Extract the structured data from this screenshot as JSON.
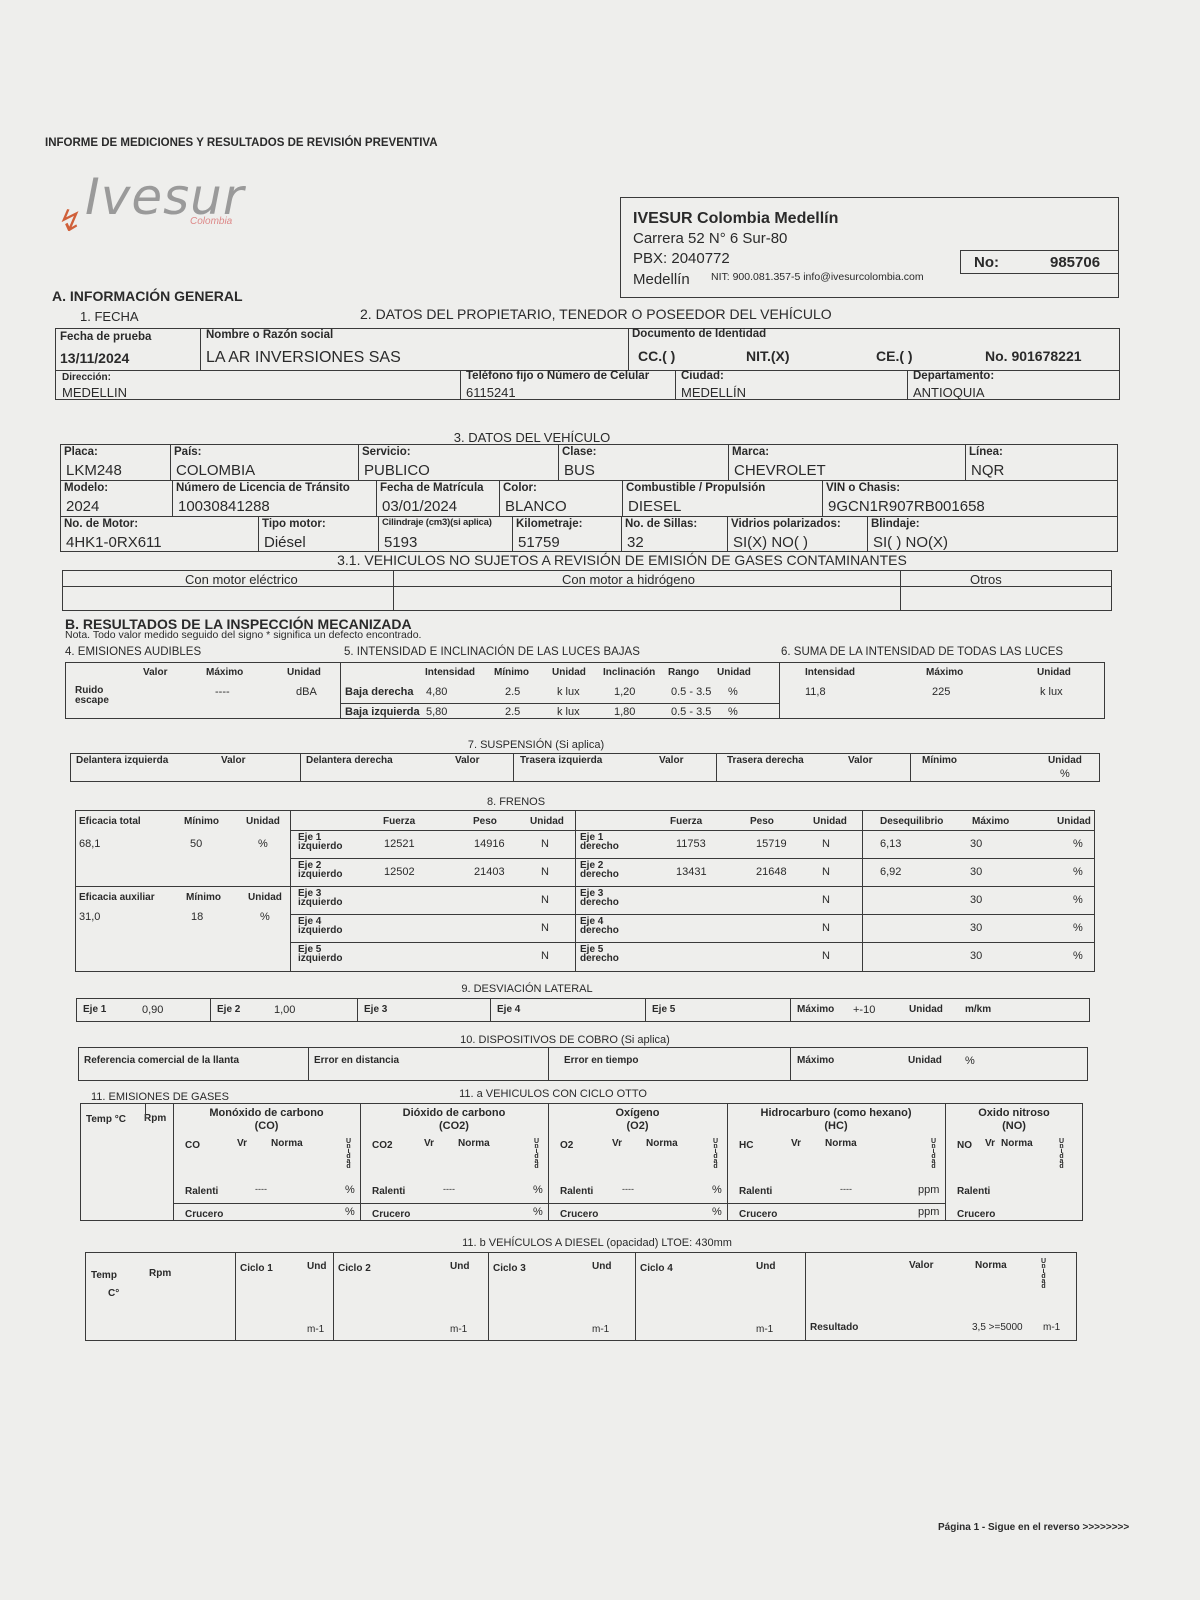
{
  "header": {
    "report_title": "INFORME DE MEDICIONES Y RESULTADOS DE REVISIÓN PREVENTIVA",
    "logo_text": "Ivesur",
    "logo_sub": "Colombia"
  },
  "company": {
    "name": "IVESUR Colombia Medellín",
    "address": "Carrera 52 N° 6 Sur-80",
    "pbx": "PBX: 2040772",
    "city": "Medellín",
    "nit": "NIT: 900.081.357-5 info@ivesurcolombia.com",
    "no_label": "No:",
    "no_value": "985706"
  },
  "sectionA": {
    "title": "A. INFORMACIÓN GENERAL",
    "fecha_title": "1. FECHA",
    "owner_title": "2. DATOS DEL PROPIETARIO, TENEDOR O POSEEDOR DEL VEHÍCULO",
    "fecha_label": "Fecha de prueba",
    "fecha": "13/11/2024",
    "nombre_label": "Nombre o Razón social",
    "nombre": "LA AR INVERSIONES SAS",
    "doc_label": "Documento de Identidad",
    "cc": "CC.(  )",
    "nit": "NIT.(X)",
    "ce": "CE.(  )",
    "doc_no": "No. 901678221",
    "dir_label": "Dirección:",
    "dir": "MEDELLIN",
    "tel_label": "Teléfono fijo o Número de Celular",
    "tel": "6115241",
    "ciudad_label": "Ciudad:",
    "ciudad": "MEDELLÍN",
    "depto_label": "Departamento:",
    "depto": "ANTIOQUIA"
  },
  "vehicle": {
    "title": "3. DATOS DEL VEHÍCULO",
    "row1": [
      {
        "label": "Placa:",
        "value": "LKM248"
      },
      {
        "label": "País:",
        "value": "COLOMBIA"
      },
      {
        "label": "Servicio:",
        "value": "PUBLICO"
      },
      {
        "label": "Clase:",
        "value": "BUS"
      },
      {
        "label": "Marca:",
        "value": "CHEVROLET"
      },
      {
        "label": "Línea:",
        "value": "NQR"
      }
    ],
    "row2": [
      {
        "label": "Modelo:",
        "value": "2024"
      },
      {
        "label": "Número de Licencia de Tránsito",
        "value": "10030841288"
      },
      {
        "label": "Fecha de Matrícula",
        "value": "03/01/2024"
      },
      {
        "label": "Color:",
        "value": "BLANCO"
      },
      {
        "label": "Combustible / Propulsión",
        "value": "DIESEL"
      },
      {
        "label": "VIN o Chasis:",
        "value": "9GCN1R907RB001658"
      }
    ],
    "row3": [
      {
        "label": "No. de Motor:",
        "value": "4HK1-0RX611"
      },
      {
        "label": "Tipo motor:",
        "value": "Diésel"
      },
      {
        "label": "Cilindraje (cm3)(si aplica)",
        "value": "5193"
      },
      {
        "label": "Kilometraje:",
        "value": "51759"
      },
      {
        "label": "No. de Sillas:",
        "value": "32"
      },
      {
        "label": "Vidrios polarizados:",
        "value": "SI(X) NO(  )"
      },
      {
        "label": "Blindaje:",
        "value": "SI(  )  NO(X)"
      }
    ]
  },
  "exempt": {
    "title": "3.1. VEHICULOS NO SUJETOS A REVISIÓN DE EMISIÓN DE GASES CONTAMINANTES",
    "cols": [
      "Con motor eléctrico",
      "Con motor a hidrógeno",
      "Otros"
    ]
  },
  "sectionB": {
    "title": "B. RESULTADOS DE LA INSPECCIÓN MECANIZADA",
    "note": "Nota. Todo valor medido seguido del signo * significa un defecto encontrado."
  },
  "audible": {
    "title": "4. EMISIONES AUDIBLES",
    "headers": [
      "Valor",
      "Máximo",
      "Unidad"
    ],
    "label": "Ruido escape",
    "max": "----",
    "unit": "dBA"
  },
  "lights": {
    "title": "5. INTENSIDAD E INCLINACIÓN DE LAS LUCES BAJAS",
    "headers": [
      "Intensidad",
      "Mínimo",
      "Unidad",
      "Inclinación",
      "Rango",
      "Unidad"
    ],
    "rows": [
      {
        "label": "Baja derecha",
        "intensidad": "4,80",
        "minimo": "2.5",
        "unidad": "k lux",
        "inclinacion": "1,20",
        "rango": "0.5 - 3.5",
        "unidad2": "%"
      },
      {
        "label": "Baja izquierda",
        "intensidad": "5,80",
        "minimo": "2.5",
        "unidad": "k lux",
        "inclinacion": "1,80",
        "rango": "0.5 - 3.5",
        "unidad2": "%"
      }
    ]
  },
  "lights_sum": {
    "title": "6. SUMA DE LA INTENSIDAD DE TODAS LAS LUCES",
    "headers": [
      "Intensidad",
      "Máximo",
      "Unidad"
    ],
    "intensidad": "11,8",
    "maximo": "225",
    "unidad": "k lux"
  },
  "suspension": {
    "title": "7. SUSPENSIÓN (Si aplica)",
    "labels": [
      "Delantera izquierda",
      "Valor",
      "Delantera derecha",
      "Valor",
      "Trasera izquierda",
      "Valor",
      "Trasera derecha",
      "Valor",
      "Mínimo",
      "Unidad"
    ],
    "unit": "%"
  },
  "brakes": {
    "title": "8. FRENOS",
    "total": {
      "label": "Eficacia total",
      "min_label": "Mínimo",
      "unit_label": "Unidad",
      "value": "68,1",
      "min": "50",
      "unit": "%"
    },
    "aux": {
      "label": "Eficacia auxiliar",
      "min_label": "Mínimo",
      "unit_label": "Unidad",
      "value": "31,0",
      "min": "18",
      "unit": "%"
    },
    "headers_left": [
      "Fuerza",
      "Peso",
      "Unidad"
    ],
    "headers_right": [
      "Fuerza",
      "Peso",
      "Unidad",
      "Desequilibrio",
      "Máximo",
      "Unidad"
    ],
    "rows": [
      {
        "left": "Eje 1 izquierdo",
        "lf": "12521",
        "lp": "14916",
        "lu": "N",
        "right": "Eje 1 derecho",
        "rf": "11753",
        "rp": "15719",
        "ru": "N",
        "deseq": "6,13",
        "max": "30",
        "unit": "%"
      },
      {
        "left": "Eje 2 izquierdo",
        "lf": "12502",
        "lp": "21403",
        "lu": "N",
        "right": "Eje 2 derecho",
        "rf": "13431",
        "rp": "21648",
        "ru": "N",
        "deseq": "6,92",
        "max": "30",
        "unit": "%"
      },
      {
        "left": "Eje 3 izquierdo",
        "lf": "",
        "lp": "",
        "lu": "N",
        "right": "Eje 3 derecho",
        "rf": "",
        "rp": "",
        "ru": "N",
        "deseq": "",
        "max": "30",
        "unit": "%"
      },
      {
        "left": "Eje 4 izquierdo",
        "lf": "",
        "lp": "",
        "lu": "N",
        "right": "Eje 4 derecho",
        "rf": "",
        "rp": "",
        "ru": "N",
        "deseq": "",
        "max": "30",
        "unit": "%"
      },
      {
        "left": "Eje 5 izquierdo",
        "lf": "",
        "lp": "",
        "lu": "N",
        "right": "Eje 5 derecho",
        "rf": "",
        "rp": "",
        "ru": "N",
        "deseq": "",
        "max": "30",
        "unit": "%"
      }
    ]
  },
  "deviation": {
    "title": "9. DESVIACIÓN LATERAL",
    "eje1": "Eje 1",
    "v1": "0,90",
    "eje2": "Eje 2",
    "v2": "1,00",
    "eje3": "Eje 3",
    "eje4": "Eje 4",
    "eje5": "Eje 5",
    "max_label": "Máximo",
    "max": "+-10",
    "unit_label": "Unidad",
    "unit": "m/km"
  },
  "charging": {
    "title": "10. DISPOSITIVOS DE COBRO (Si aplica)",
    "ref": "Referencia comercial de la llanta",
    "dist": "Error en distancia",
    "time": "Error en tiempo",
    "max": "Máximo",
    "unit_label": "Unidad",
    "unit": "%"
  },
  "gases": {
    "title": "11. EMISIONES DE GASES",
    "otto_title": "11. a VEHICULOS CON CICLO OTTO",
    "temp": "Temp °C",
    "rpm": "Rpm",
    "vr": "Vr",
    "norma": "Norma",
    "unidad": "Unidad",
    "ralenti": "Ralenti",
    "crucero": "Crucero",
    "dash": "----",
    "groups": [
      {
        "title": "Monóxido de carbono",
        "sub": "(CO)",
        "code": "CO",
        "unit": "%"
      },
      {
        "title": "Dióxido de carbono",
        "sub": "(CO2)",
        "code": "CO2",
        "unit": "%"
      },
      {
        "title": "Oxígeno",
        "sub": "(O2)",
        "code": "O2",
        "unit": "%"
      },
      {
        "title": "Hidrocarburo (como hexano)",
        "sub": "(HC)",
        "code": "HC",
        "unit": "ppm"
      },
      {
        "title": "Oxido nitroso",
        "sub": "(NO)",
        "code": "NO",
        "unit": ""
      }
    ]
  },
  "diesel": {
    "title": "11. b VEHÍCULOS A DIESEL (opacidad) LTOE: 430mm",
    "temp": "Temp",
    "rpm": "Rpm",
    "c": "C°",
    "ciclos": [
      "Ciclo 1",
      "Ciclo 2",
      "Ciclo 3",
      "Ciclo 4"
    ],
    "und": "Und",
    "unit": "m-1",
    "valor": "Valor",
    "norma": "Norma",
    "unidad": "Unidad",
    "resultado": "Resultado",
    "norma_value": "3,5 >=5000"
  },
  "footer": {
    "page": "Página 1 - Sigue en el reverso >>>>>>>>"
  }
}
